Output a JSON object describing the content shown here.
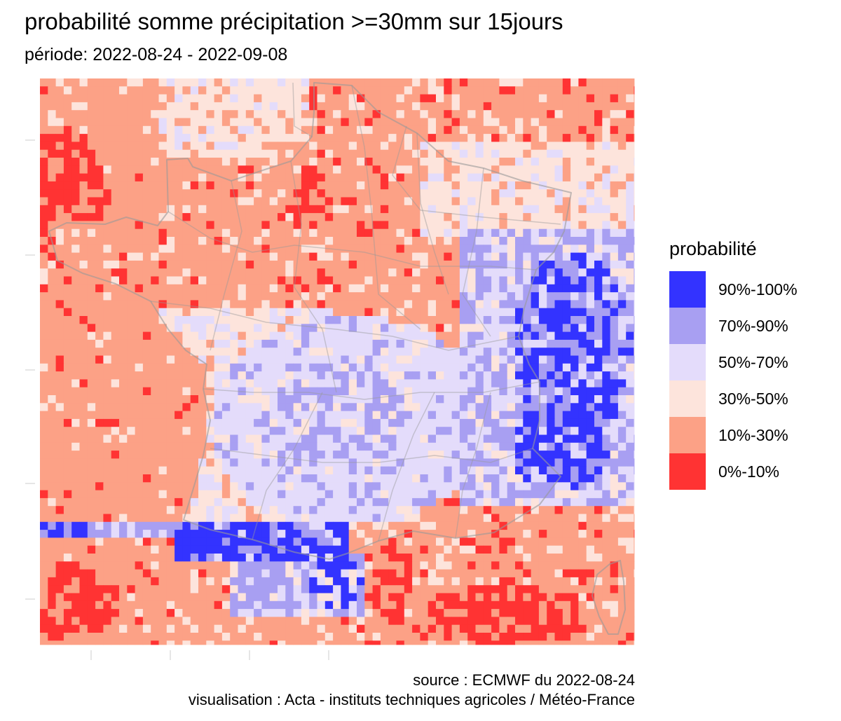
{
  "title": "probabilité somme précipitation >=30mm sur 15jours",
  "subtitle": "période: 2022-08-24 - 2022-09-08",
  "legend": {
    "title": "probabilité",
    "items": [
      {
        "label": "90%-100%",
        "color": "#3333ff"
      },
      {
        "label": "70%-90%",
        "color": "#a89ff2"
      },
      {
        "label": "50%-70%",
        "color": "#e4dcfb"
      },
      {
        "label": "30%-50%",
        "color": "#fde4dc"
      },
      {
        "label": "10%-30%",
        "color": "#fca186"
      },
      {
        "label": "0%-10%",
        "color": "#ff3333"
      }
    ]
  },
  "caption": {
    "line1": "source : ECMWF du 2022-08-24",
    "line2": "visualisation : Acta - instituts techniques agricoles / Météo-France"
  },
  "map": {
    "region": "France",
    "border_color": "#9a9a9a",
    "background_class_color": "#fca186"
  }
}
